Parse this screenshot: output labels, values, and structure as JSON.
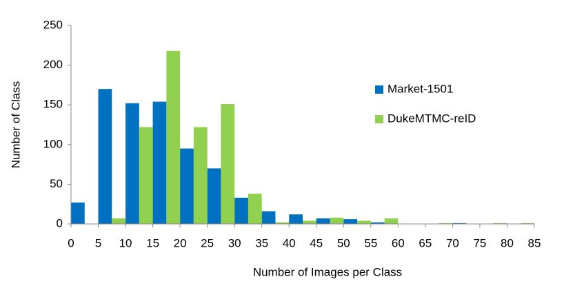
{
  "chart_data": {
    "type": "histogram",
    "xlabel": "Number of Images per Class",
    "ylabel": "Number of Class",
    "bins": [
      0,
      5,
      10,
      15,
      20,
      25,
      30,
      35,
      40,
      45,
      50,
      55,
      60,
      65,
      70,
      75,
      80,
      85
    ],
    "series": [
      {
        "name": "Market-1501",
        "color": "#0070c0",
        "values": [
          27,
          170,
          152,
          154,
          95,
          70,
          33,
          16,
          12,
          7,
          6,
          2,
          0,
          0,
          1,
          0,
          0
        ]
      },
      {
        "name": "DukeMTMC-reID",
        "color": "#92d050",
        "values": [
          0,
          7,
          122,
          218,
          122,
          151,
          38,
          2,
          4,
          8,
          4,
          7,
          0,
          1,
          0,
          1,
          1
        ]
      }
    ],
    "xlim": [
      0,
      85
    ],
    "xticks": [
      0,
      5,
      10,
      15,
      20,
      25,
      30,
      35,
      40,
      45,
      50,
      55,
      60,
      65,
      70,
      75,
      80,
      85
    ],
    "ylim": [
      0,
      250
    ],
    "yticks": [
      0,
      50,
      100,
      150,
      200,
      250
    ],
    "grid": false,
    "legend": "right"
  }
}
